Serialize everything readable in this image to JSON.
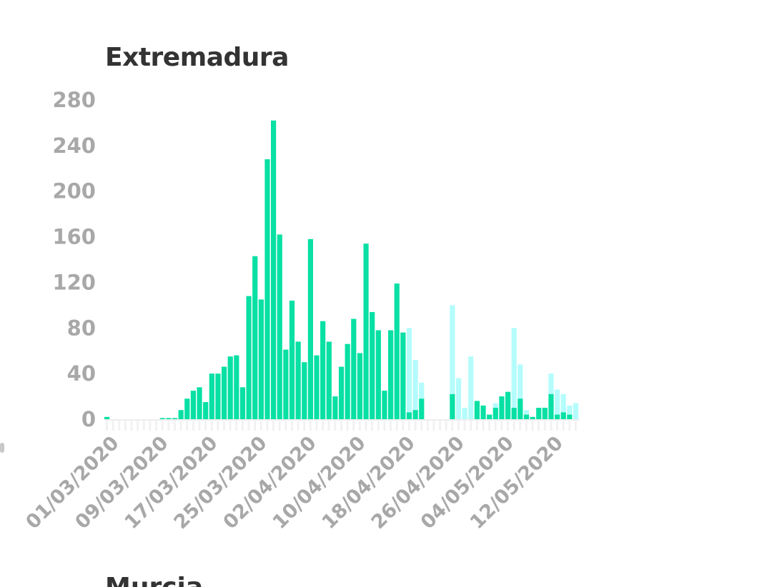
{
  "colors": {
    "confirmed": "#08e0a4",
    "pending": "#b4fcfc",
    "ticks": "#a8a8a8",
    "title": "#333333"
  },
  "chart_data": {
    "type": "bar",
    "title": "Extremadura",
    "xlabel": "",
    "ylabel": "",
    "ylim": [
      0,
      280
    ],
    "yticks": [
      "0",
      "40",
      "80",
      "120",
      "160",
      "200",
      "240",
      "280"
    ],
    "xticks": [
      "01/03/2020",
      "09/03/2020",
      "17/03/2020",
      "25/03/2020",
      "02/04/2020",
      "10/04/2020",
      "18/04/2020",
      "26/04/2020",
      "04/05/2020",
      "12/05/2020"
    ],
    "grid": false,
    "legend": "none",
    "x": [
      "01/03",
      "02/03",
      "03/03",
      "04/03",
      "05/03",
      "06/03",
      "07/03",
      "08/03",
      "09/03",
      "10/03",
      "11/03",
      "12/03",
      "13/03",
      "14/03",
      "15/03",
      "16/03",
      "17/03",
      "18/03",
      "19/03",
      "20/03",
      "21/03",
      "22/03",
      "23/03",
      "24/03",
      "25/03",
      "26/03",
      "27/03",
      "28/03",
      "29/03",
      "30/03",
      "31/03",
      "01/04",
      "02/04",
      "03/04",
      "04/04",
      "05/04",
      "06/04",
      "07/04",
      "08/04",
      "09/04",
      "10/04",
      "11/04",
      "12/04",
      "13/04",
      "14/04",
      "15/04",
      "16/04",
      "17/04",
      "18/04",
      "19/04",
      "20/04",
      "21/04",
      "22/04",
      "23/04",
      "24/04",
      "25/04",
      "26/04",
      "27/04",
      "28/04",
      "29/04",
      "30/04",
      "01/05",
      "02/05",
      "03/05",
      "04/05",
      "05/05",
      "06/05",
      "07/05",
      "08/05",
      "09/05",
      "10/05",
      "11/05",
      "12/05",
      "13/05",
      "14/05",
      "15/05",
      "16/05"
    ],
    "series": [
      {
        "values": [
          2,
          0,
          0,
          0,
          0,
          0,
          0,
          0,
          0,
          1,
          1,
          1,
          8,
          18,
          25,
          28,
          15,
          40,
          40,
          46,
          55,
          56,
          28,
          108,
          143,
          105,
          228,
          262,
          162,
          61,
          104,
          68,
          50,
          158,
          56,
          86,
          68,
          20,
          46,
          66,
          88,
          58,
          154,
          94,
          78,
          25,
          78,
          119,
          76,
          6,
          8,
          18,
          0,
          0,
          0,
          0,
          22,
          0,
          0,
          0,
          16,
          12,
          4,
          10,
          20,
          24,
          10,
          18,
          4,
          2,
          10,
          10,
          22,
          4,
          6,
          4,
          0
        ]
      },
      {
        "values": [
          0,
          0,
          0,
          0,
          0,
          0,
          0,
          0,
          0,
          0,
          0,
          0,
          0,
          0,
          0,
          0,
          0,
          0,
          0,
          0,
          0,
          0,
          0,
          0,
          0,
          0,
          0,
          0,
          0,
          0,
          0,
          0,
          0,
          0,
          0,
          0,
          0,
          0,
          0,
          0,
          0,
          0,
          0,
          0,
          0,
          0,
          0,
          0,
          62,
          80,
          52,
          32,
          0,
          0,
          0,
          0,
          100,
          36,
          10,
          55,
          0,
          0,
          0,
          14,
          12,
          16,
          80,
          48,
          8,
          2,
          0,
          6,
          40,
          26,
          22,
          12,
          14
        ]
      }
    ]
  },
  "next_chart": {
    "title": "Murcia"
  }
}
